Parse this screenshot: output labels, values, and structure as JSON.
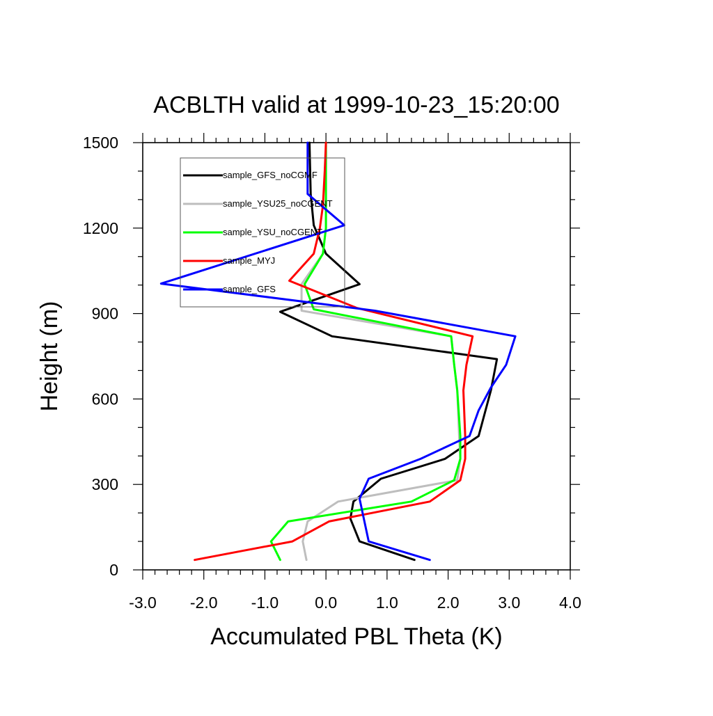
{
  "chart_data": {
    "type": "line",
    "title": "ACBLTH valid at 1999-10-23_15:20:00",
    "xlabel": "Accumulated PBL Theta (K)",
    "ylabel": "Height (m)",
    "xlim": [
      -3.0,
      4.0
    ],
    "ylim": [
      0,
      1500
    ],
    "xticks": [
      "-3.0",
      "-2.0",
      "-1.0",
      "0.0",
      "1.0",
      "2.0",
      "3.0",
      "4.0"
    ],
    "yticks": [
      "0",
      "300",
      "600",
      "900",
      "1200",
      "1500"
    ],
    "grid": false,
    "legend_position": "top-left",
    "series": [
      {
        "name": "sample_GFS_noCGMF",
        "color": "#000000",
        "x": [
          1.45,
          0.55,
          0.4,
          0.45,
          0.9,
          1.95,
          2.5,
          2.7,
          2.8,
          0.1,
          -0.75,
          0.55,
          0.0,
          -0.2,
          -0.25,
          -0.27
        ],
        "y": [
          35,
          100,
          180,
          240,
          320,
          390,
          470,
          630,
          740,
          820,
          906,
          1003,
          1110,
          1210,
          1320,
          1500
        ]
      },
      {
        "name": "sample_YSU25_noCGENT",
        "color": "#bebebe",
        "x": [
          -0.32,
          -0.38,
          -0.3,
          0.2,
          2.15,
          2.2,
          2.18,
          2.15,
          2.1,
          2.05,
          -0.4,
          -0.4,
          -0.05,
          0.0,
          0.0,
          0.0,
          0.0
        ],
        "y": [
          35,
          100,
          170,
          240,
          315,
          390,
          470,
          630,
          720,
          820,
          910,
          1003,
          1110,
          1200,
          1280,
          1400,
          1500
        ]
      },
      {
        "name": "sample_YSU_noCGENT",
        "color": "#00ff00",
        "x": [
          -0.75,
          -0.9,
          -0.62,
          1.4,
          2.1,
          2.2,
          2.2,
          2.15,
          2.1,
          2.05,
          -0.2,
          -0.35,
          -0.05,
          0.0,
          0.0,
          0.0
        ],
        "y": [
          35,
          100,
          170,
          240,
          315,
          390,
          470,
          630,
          720,
          820,
          915,
          1003,
          1110,
          1200,
          1320,
          1500
        ]
      },
      {
        "name": "sample_MYJ",
        "color": "#ff0000",
        "x": [
          -2.15,
          -0.55,
          0.05,
          1.7,
          2.2,
          2.28,
          2.28,
          2.25,
          2.3,
          2.4,
          0.5,
          -0.6,
          -0.2,
          -0.1,
          -0.05,
          -0.02,
          0.0
        ],
        "y": [
          35,
          100,
          170,
          240,
          315,
          390,
          470,
          630,
          720,
          820,
          920,
          1015,
          1110,
          1200,
          1280,
          1400,
          1500
        ]
      },
      {
        "name": "sample_GFS",
        "color": "#0000ff",
        "x": [
          1.7,
          0.7,
          0.55,
          0.7,
          1.55,
          2.35,
          2.5,
          2.7,
          2.95,
          3.1,
          0.8,
          -2.7,
          0.3,
          -0.3,
          -0.3,
          -0.3
        ],
        "y": [
          35,
          100,
          250,
          320,
          390,
          470,
          560,
          640,
          720,
          820,
          910,
          1005,
          1210,
          1320,
          1400,
          1500
        ]
      }
    ]
  }
}
